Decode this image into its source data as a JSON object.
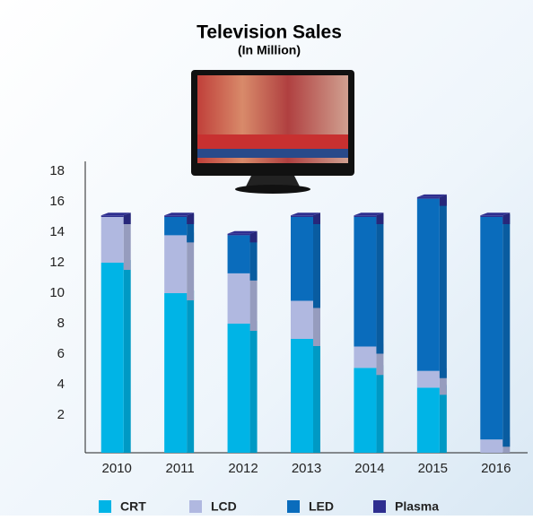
{
  "chart_data": {
    "type": "stacked_bar_3d",
    "title": "Television Sales",
    "subtitle": "(In Million)",
    "categories": [
      "2010",
      "2011",
      "2012",
      "2013",
      "2014",
      "2015",
      "2016"
    ],
    "series": [
      {
        "name": "CRT",
        "color": "#00b4e6",
        "values": [
          12,
          10,
          8,
          7,
          5.1,
          3.8,
          0
        ]
      },
      {
        "name": "LCD",
        "color": "#b0b8e0",
        "values": [
          3,
          3.8,
          3.3,
          2.5,
          1.4,
          1.1,
          0.4
        ]
      },
      {
        "name": "LED",
        "color": "#0a6cbc",
        "values": [
          0,
          1.2,
          2.5,
          5.5,
          8.5,
          11.3,
          14.6
        ]
      },
      {
        "name": "Plasma",
        "color": "#2e2e8f",
        "values": [
          0.1,
          0.1,
          0.1,
          0.1,
          0.1,
          0.1,
          0.1
        ]
      }
    ],
    "ylim": [
      0,
      18
    ],
    "yticks": [
      2,
      4,
      6,
      8,
      10,
      12,
      14,
      16,
      18
    ],
    "grid": false
  }
}
